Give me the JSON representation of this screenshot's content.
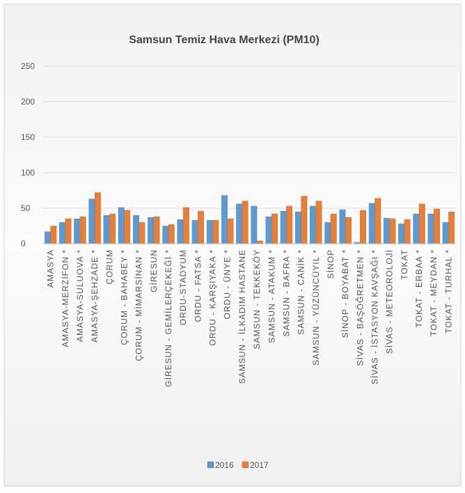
{
  "chart_data": {
    "type": "bar",
    "title": "Samsun Temiz Hava Merkezi (PM10)",
    "categories": [
      "AMASYA",
      "AMASYA-MERZİFON *",
      "AMASYA-SULUOVA *",
      "AMASYA-ŞEHZADE *",
      "ÇORUM",
      "ÇORUM - BAHABEY *",
      "ÇORUM - MİMARSİNAN *",
      "GİRESUN",
      "GİRESUN - GEMİLERÇEKEĞİ *",
      "ORDU-STADYUM",
      "ORDU - FATSA *",
      "ORDU - KARŞIYAKA *",
      "ORDU - ÜNYE *",
      "SAMSUN - İLKADIM HASTANE",
      "SAMSUN - TEKKEKÖY",
      "SAMSUN - ATAKUM *",
      "SAMSUN - BAFRA *",
      "SAMSUN - CANİK *",
      "SAMSUN - YÜZÜNCÜYIL *",
      "SİNOP",
      "SİNOP - BOYABAT *",
      "SİVAS - BAŞÖĞRETMEN *",
      "SİVAS - İSTASYON KAVŞAĞI *",
      "SİVAS - METEOROLOJİ",
      "TOKAT",
      "TOKAT - ERBAA *",
      "TOKAT - MEYDAN *",
      "TOKAT - TURHAL *"
    ],
    "series": [
      {
        "name": "2016",
        "color": "#5b9bd5",
        "values": [
          17,
          30,
          35,
          63,
          40,
          51,
          40,
          37,
          25,
          34,
          33,
          33,
          68,
          56,
          53,
          38,
          46,
          45,
          53,
          30,
          48,
          2,
          57,
          36,
          28,
          42,
          42,
          30
        ]
      },
      {
        "name": "2017",
        "color": "#ed7d31",
        "values": [
          25,
          35,
          38,
          72,
          42,
          47,
          30,
          38,
          27,
          51,
          46,
          33,
          35,
          60,
          4,
          42,
          53,
          67,
          60,
          42,
          37,
          47,
          64,
          35,
          34,
          56,
          49,
          45
        ]
      }
    ],
    "ylim": [
      0,
      250
    ],
    "yticks": [
      0,
      50,
      100,
      150,
      200,
      250
    ],
    "grid": true,
    "legend": "bottom"
  }
}
